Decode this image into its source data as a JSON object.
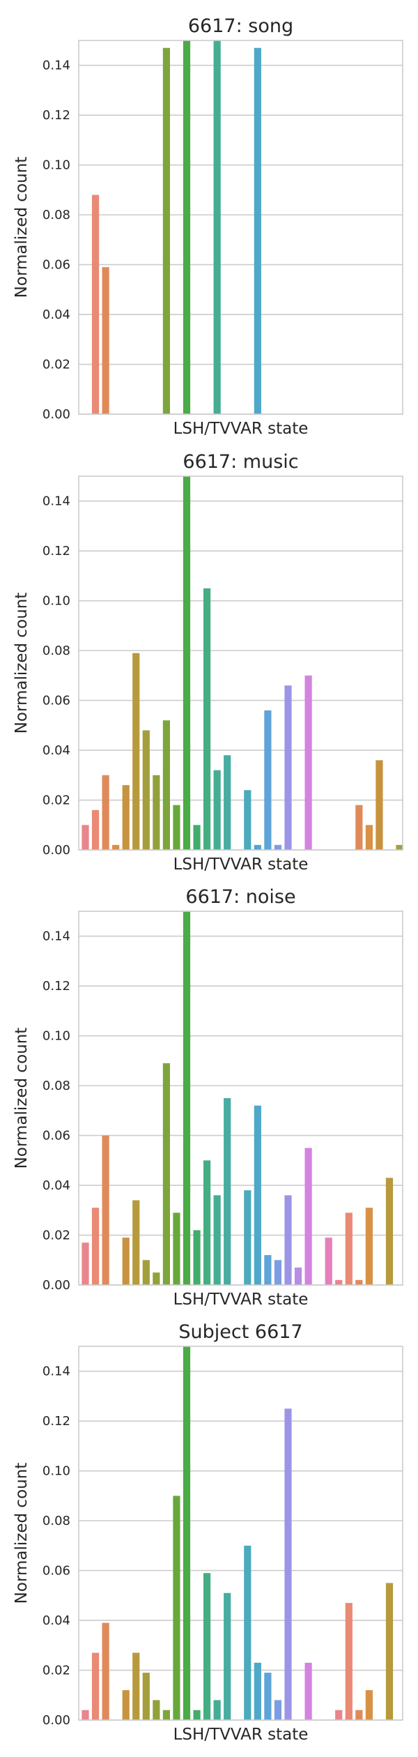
{
  "palette": [
    "#e9858c",
    "#e98a75",
    "#e08a5a",
    "#d89145",
    "#c7933f",
    "#b79a3c",
    "#a59e3c",
    "#93a13c",
    "#7ea53b",
    "#67a83b",
    "#4aab47",
    "#43ac6d",
    "#45ad82",
    "#47ad92",
    "#48aca0",
    "#4aabad",
    "#4caabc",
    "#4fa8c9",
    "#5ea4d8",
    "#7d9de2",
    "#9c95e6",
    "#b98de4",
    "#d483e0",
    "#e07fd1",
    "#e67fbc"
  ],
  "chart_data": [
    {
      "type": "bar",
      "title": "6617: song",
      "xlabel": "LSH/TVVAR state",
      "ylabel": "Normalized count",
      "ylim": [
        0,
        0.15
      ],
      "yticks": [
        "0.00",
        "0.02",
        "0.04",
        "0.06",
        "0.08",
        "0.10",
        "0.12",
        "0.14"
      ],
      "grid": true,
      "values": [
        0,
        0.088,
        0.059,
        0,
        0,
        0,
        0,
        0,
        0.147,
        0,
        0.15,
        0,
        0,
        0.15,
        0,
        0,
        0,
        0.147,
        0,
        0,
        0,
        0,
        0,
        0,
        0,
        0,
        0,
        0,
        0,
        0,
        0,
        0,
        0
      ]
    },
    {
      "type": "bar",
      "title": "6617: music",
      "xlabel": "LSH/TVVAR state",
      "ylabel": "Normalized count",
      "ylim": [
        0,
        0.15
      ],
      "yticks": [
        "0.00",
        "0.02",
        "0.04",
        "0.06",
        "0.08",
        "0.10",
        "0.12",
        "0.14"
      ],
      "grid": true,
      "values": [
        0.01,
        0.016,
        0.03,
        0.002,
        0.026,
        0.079,
        0.048,
        0.03,
        0.052,
        0.018,
        0.15,
        0.01,
        0.105,
        0.032,
        0.038,
        0,
        0.024,
        0.002,
        0.056,
        0.002,
        0.066,
        0,
        0.07,
        0,
        0,
        0,
        0,
        0.018,
        0.01,
        0.036,
        0,
        0.002,
        0
      ]
    },
    {
      "type": "bar",
      "title": "6617: noise",
      "xlabel": "LSH/TVVAR state",
      "ylabel": "Normalized count",
      "ylim": [
        0,
        0.15
      ],
      "yticks": [
        "0.00",
        "0.02",
        "0.04",
        "0.06",
        "0.08",
        "0.10",
        "0.12",
        "0.14"
      ],
      "grid": true,
      "values": [
        0.017,
        0.031,
        0.06,
        0,
        0.019,
        0.034,
        0.01,
        0.005,
        0.089,
        0.029,
        0.15,
        0.022,
        0.05,
        0.036,
        0.075,
        0,
        0.038,
        0.072,
        0.012,
        0.01,
        0.036,
        0.007,
        0.055,
        0,
        0.019,
        0.002,
        0.029,
        0.002,
        0.031,
        0,
        0.043,
        0,
        0
      ]
    },
    {
      "type": "bar",
      "title": "Subject 6617",
      "xlabel": "LSH/TVVAR state",
      "ylabel": "Normalized count",
      "ylim": [
        0,
        0.15
      ],
      "yticks": [
        "0.00",
        "0.02",
        "0.04",
        "0.06",
        "0.08",
        "0.10",
        "0.12",
        "0.14"
      ],
      "grid": true,
      "values": [
        0.004,
        0.027,
        0.039,
        0,
        0.012,
        0.027,
        0.019,
        0.008,
        0.004,
        0.09,
        0.15,
        0.004,
        0.059,
        0.008,
        0.051,
        0,
        0.07,
        0.023,
        0.019,
        0.008,
        0.125,
        0,
        0.023,
        0,
        0,
        0.004,
        0.047,
        0.004,
        0.012,
        0,
        0.055,
        0,
        0
      ]
    }
  ]
}
